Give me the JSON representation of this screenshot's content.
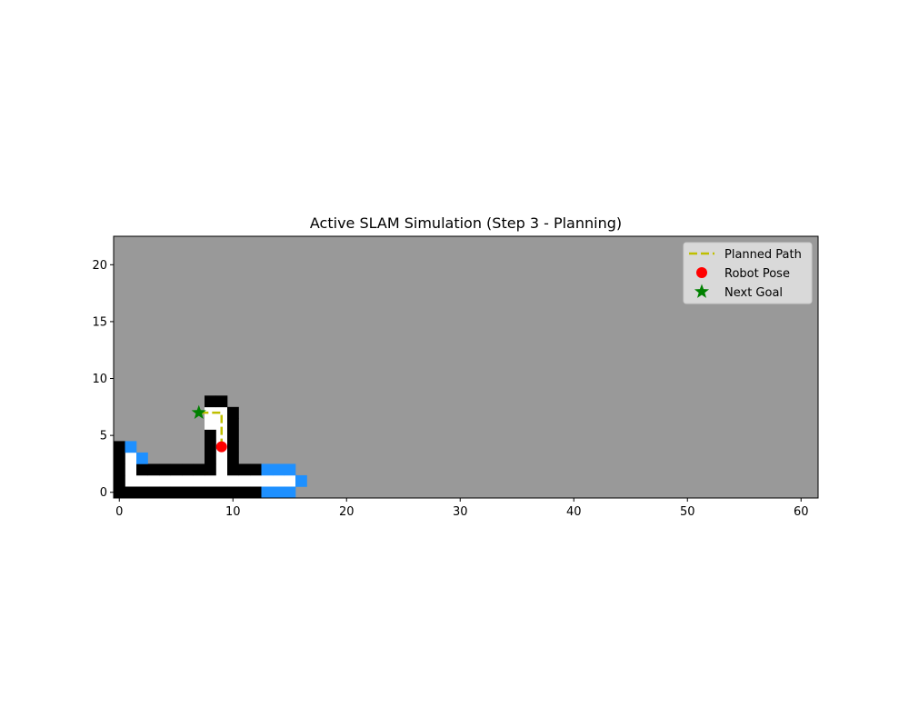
{
  "chart_data": {
    "type": "heatmap",
    "title": "Active SLAM Simulation (Step 3 - Planning)",
    "xlabel": "",
    "ylabel": "",
    "xlim": [
      -0.5,
      61.5
    ],
    "ylim": [
      -0.5,
      22.5
    ],
    "x_ticks": [
      0,
      10,
      20,
      30,
      40,
      50,
      60
    ],
    "y_ticks": [
      0,
      5,
      10,
      15,
      20
    ],
    "grid": false,
    "legend_position": "top-right",
    "colors": {
      "unknown": "#999999",
      "free": "#ffffff",
      "occupied": "#000000",
      "frontier": "#1e90ff",
      "path": "#bfbf00",
      "robot": "#ff0000",
      "goal": "#008000"
    },
    "grid_cells": {
      "free": [
        [
          1,
          1
        ],
        [
          2,
          1
        ],
        [
          3,
          1
        ],
        [
          4,
          1
        ],
        [
          5,
          1
        ],
        [
          6,
          1
        ],
        [
          7,
          1
        ],
        [
          8,
          1
        ],
        [
          9,
          1
        ],
        [
          10,
          1
        ],
        [
          11,
          1
        ],
        [
          12,
          1
        ],
        [
          13,
          1
        ],
        [
          14,
          1
        ],
        [
          15,
          1
        ],
        [
          1,
          2
        ],
        [
          9,
          2
        ],
        [
          1,
          3
        ],
        [
          9,
          3
        ],
        [
          9,
          4
        ],
        [
          9,
          5
        ],
        [
          9,
          6
        ],
        [
          8,
          7
        ],
        [
          9,
          7
        ],
        [
          8,
          6
        ]
      ],
      "occupied": [
        [
          0,
          0
        ],
        [
          1,
          0
        ],
        [
          2,
          0
        ],
        [
          3,
          0
        ],
        [
          4,
          0
        ],
        [
          5,
          0
        ],
        [
          6,
          0
        ],
        [
          7,
          0
        ],
        [
          8,
          0
        ],
        [
          9,
          0
        ],
        [
          10,
          0
        ],
        [
          11,
          0
        ],
        [
          12,
          0
        ],
        [
          0,
          1
        ],
        [
          0,
          2
        ],
        [
          0,
          3
        ],
        [
          0,
          4
        ],
        [
          2,
          2
        ],
        [
          3,
          2
        ],
        [
          4,
          2
        ],
        [
          5,
          2
        ],
        [
          6,
          2
        ],
        [
          7,
          2
        ],
        [
          8,
          2
        ],
        [
          10,
          2
        ],
        [
          11,
          2
        ],
        [
          12,
          2
        ],
        [
          8,
          3
        ],
        [
          8,
          4
        ],
        [
          8,
          5
        ],
        [
          10,
          3
        ],
        [
          10,
          4
        ],
        [
          10,
          5
        ],
        [
          10,
          6
        ],
        [
          10,
          7
        ],
        [
          8,
          8
        ],
        [
          9,
          8
        ]
      ],
      "frontier": [
        [
          1,
          4
        ],
        [
          2,
          3
        ],
        [
          13,
          2
        ],
        [
          14,
          2
        ],
        [
          15,
          2
        ],
        [
          16,
          1
        ],
        [
          13,
          0
        ],
        [
          14,
          0
        ],
        [
          15,
          0
        ]
      ]
    },
    "series": [
      {
        "name": "Planned Path",
        "type": "line",
        "style": "dashed",
        "x": [
          9,
          9,
          7
        ],
        "y": [
          4,
          7,
          7
        ]
      },
      {
        "name": "Robot Pose",
        "type": "scatter",
        "marker": "circle",
        "x": [
          9
        ],
        "y": [
          4
        ]
      },
      {
        "name": "Next Goal",
        "type": "scatter",
        "marker": "star",
        "x": [
          7
        ],
        "y": [
          7
        ]
      }
    ]
  }
}
